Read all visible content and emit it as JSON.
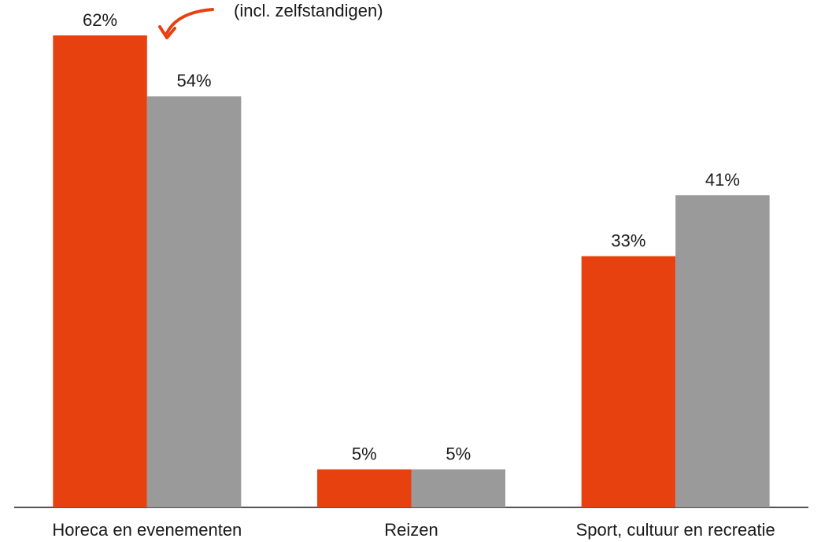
{
  "chart_data": {
    "type": "bar",
    "categories": [
      "Horeca en evenementen",
      "Reizen",
      "Sport, cultuur en recreatie"
    ],
    "series": [
      {
        "color": "#e84110",
        "values": [
          62,
          5,
          33
        ],
        "value_labels": [
          "62%",
          "5%",
          "33%"
        ]
      },
      {
        "color": "#9a9a9a",
        "values": [
          54,
          5,
          41
        ],
        "value_labels": [
          "54%",
          "5%",
          "41%"
        ]
      }
    ],
    "annotations": [
      "(incl. zelfstandigen)"
    ]
  }
}
